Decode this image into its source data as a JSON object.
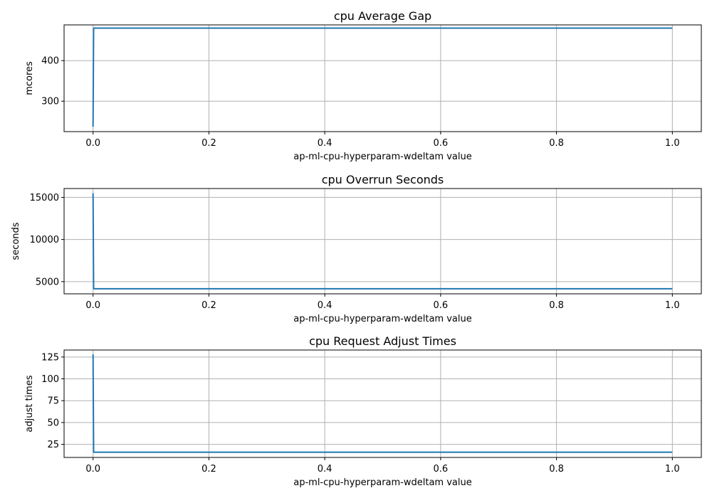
{
  "chart_data": [
    {
      "type": "line",
      "title": "cpu Average Gap",
      "xlabel": "ap-ml-cpu-hyperparam-wdeltam value",
      "ylabel": "mcores",
      "xlim": [
        -0.05,
        1.05
      ],
      "ylim": [
        225,
        488
      ],
      "xticks": [
        0.0,
        0.2,
        0.4,
        0.6,
        0.8,
        1.0
      ],
      "xtick_labels": [
        "0.0",
        "0.2",
        "0.4",
        "0.6",
        "0.8",
        "1.0"
      ],
      "yticks": [
        300,
        400
      ],
      "ytick_labels": [
        "300",
        "400"
      ],
      "grid": true,
      "series": [
        {
          "color": "#1f77b4",
          "x": [
            0.0,
            0.001,
            1.0
          ],
          "y": [
            237,
            480,
            480
          ]
        }
      ]
    },
    {
      "type": "line",
      "title": "cpu Overrun Seconds",
      "xlabel": "ap-ml-cpu-hyperparam-wdeltam value",
      "ylabel": "seconds",
      "xlim": [
        -0.05,
        1.05
      ],
      "ylim": [
        3550,
        16050
      ],
      "xticks": [
        0.0,
        0.2,
        0.4,
        0.6,
        0.8,
        1.0
      ],
      "xtick_labels": [
        "0.0",
        "0.2",
        "0.4",
        "0.6",
        "0.8",
        "1.0"
      ],
      "yticks": [
        5000,
        10000,
        15000
      ],
      "ytick_labels": [
        "5000",
        "10000",
        "15000"
      ],
      "grid": true,
      "series": [
        {
          "color": "#1f77b4",
          "x": [
            0.0,
            0.001,
            1.0
          ],
          "y": [
            15500,
            4150,
            4150
          ]
        }
      ]
    },
    {
      "type": "line",
      "title": "cpu Request Adjust Times",
      "xlabel": "ap-ml-cpu-hyperparam-wdeltam value",
      "ylabel": "adjust times",
      "xlim": [
        -0.05,
        1.05
      ],
      "ylim": [
        10,
        133
      ],
      "xticks": [
        0.0,
        0.2,
        0.4,
        0.6,
        0.8,
        1.0
      ],
      "xtick_labels": [
        "0.0",
        "0.2",
        "0.4",
        "0.6",
        "0.8",
        "1.0"
      ],
      "yticks": [
        25,
        50,
        75,
        100,
        125
      ],
      "ytick_labels": [
        "25",
        "50",
        "75",
        "100",
        "125"
      ],
      "grid": true,
      "series": [
        {
          "color": "#1f77b4",
          "x": [
            0.0,
            0.001,
            1.0
          ],
          "y": [
            128,
            16,
            16
          ]
        }
      ]
    }
  ]
}
